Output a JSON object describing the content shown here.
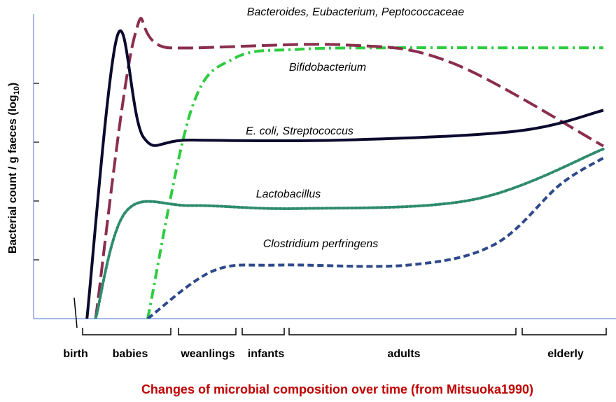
{
  "chart_data": {
    "type": "line",
    "ylabel": "Bacterial count / g faeces (log",
    "ylabel_sub": "10",
    "ylabel_close": ")",
    "yticks_count": 4,
    "x_stages": [
      {
        "label": "birth",
        "bracket": false
      },
      {
        "label": "babies",
        "bracket": true
      },
      {
        "label": "weanlings",
        "bracket": true
      },
      {
        "label": "infants",
        "bracket": true
      },
      {
        "label": "adults",
        "bracket": true
      },
      {
        "label": "elderly",
        "bracket": true
      }
    ],
    "series": [
      {
        "name": "Bacteroides,  Eubacterium,  Peptococcaceae",
        "color": "#2ecc40",
        "dash": "dashdot",
        "points": [
          [
            1.5,
            0
          ],
          [
            2.5,
            7
          ],
          [
            3.5,
            8.75
          ],
          [
            5,
            9.05
          ],
          [
            7,
            9.1
          ],
          [
            10,
            9.1
          ],
          [
            12,
            9.1
          ]
        ]
      },
      {
        "name": "Bifidobacterium",
        "color": "#8b2e4e",
        "dash": "longdash",
        "points": [
          [
            0.3,
            0
          ],
          [
            1.2,
            9.5
          ],
          [
            2,
            9.1
          ],
          [
            6,
            9.2
          ],
          [
            8.5,
            8.6
          ],
          [
            12,
            5.8
          ]
        ]
      },
      {
        "name": "E.  coli,  Streptococcus",
        "color": "#0a0a2e",
        "dash": "solid",
        "points": [
          [
            0.1,
            0
          ],
          [
            0.8,
            9.5
          ],
          [
            1.4,
            6.1
          ],
          [
            2.5,
            6
          ],
          [
            6,
            6
          ],
          [
            10,
            6.3
          ],
          [
            12,
            7
          ]
        ]
      },
      {
        "name": "Lactobacillus",
        "color": "#2e8b6e",
        "dash": "dotted",
        "points": [
          [
            0.3,
            0
          ],
          [
            1,
            3.6
          ],
          [
            2.5,
            3.8
          ],
          [
            5,
            3.7
          ],
          [
            9,
            4
          ],
          [
            12,
            5.7
          ]
        ]
      },
      {
        "name": "Clostridium  perfringens",
        "color": "#2e4a8b",
        "dash": "shortdash",
        "points": [
          [
            1.5,
            0
          ],
          [
            3,
            1.6
          ],
          [
            4.5,
            1.8
          ],
          [
            7.5,
            1.8
          ],
          [
            9.5,
            2.5
          ],
          [
            11,
            4.5
          ],
          [
            12,
            5.4
          ]
        ]
      }
    ]
  },
  "caption": "Changes of microbial composition over time (from Mitsuoka1990)"
}
